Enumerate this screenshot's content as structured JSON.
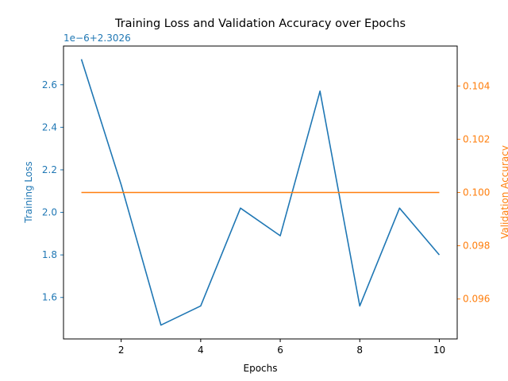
{
  "chart_data": {
    "type": "line",
    "title": "Training Loss and Validation Accuracy over Epochs",
    "xlabel": "Epochs",
    "x": [
      1,
      2,
      3,
      4,
      5,
      6,
      7,
      8,
      9,
      10
    ],
    "xlim": [
      0.55,
      10.45
    ],
    "xticks": [
      2,
      4,
      6,
      8,
      10
    ],
    "grid": false,
    "left_axis": {
      "label": "Training Loss",
      "color": "#1f77b4",
      "offset_text": "1e−6+2.3026",
      "offset_value": 2.3026,
      "scale": 1e-06,
      "ylim": [
        1.405,
        2.782
      ],
      "ticks": [
        1.6,
        1.8,
        2.0,
        2.2,
        2.4,
        2.6
      ],
      "tick_labels": [
        "1.6",
        "1.8",
        "2.0",
        "2.2",
        "2.4",
        "2.6"
      ]
    },
    "right_axis": {
      "label": "Validation Accuracy",
      "color": "#ff7f0e",
      "ylim": [
        0.0945,
        0.1055
      ],
      "ticks": [
        0.096,
        0.098,
        0.1,
        0.102,
        0.104
      ],
      "tick_labels": [
        "0.096",
        "0.098",
        "0.100",
        "0.102",
        "0.104"
      ]
    },
    "series": [
      {
        "name": "Training Loss",
        "axis": "left",
        "color": "#1f77b4",
        "values": [
          2.72,
          2.13,
          1.47,
          1.56,
          2.02,
          1.89,
          2.57,
          1.56,
          2.02,
          1.8
        ]
      },
      {
        "name": "Validation Accuracy",
        "axis": "right",
        "color": "#ff7f0e",
        "values": [
          0.1,
          0.1,
          0.1,
          0.1,
          0.1,
          0.1,
          0.1,
          0.1,
          0.1,
          0.1
        ]
      }
    ]
  }
}
